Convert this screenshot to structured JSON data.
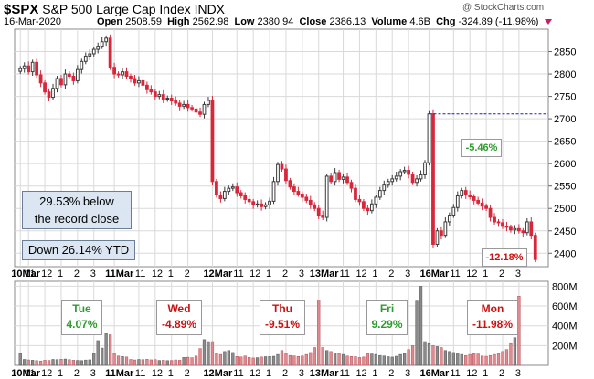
{
  "header": {
    "symbol": "$SPX",
    "name": "S&P 500 Large Cap Index",
    "exchange": "INDX",
    "date": "16-Mar-2020",
    "open_label": "Open",
    "open": "2508.59",
    "high_label": "High",
    "high": "2562.98",
    "low_label": "Low",
    "low": "2380.94",
    "close_label": "Close",
    "close": "2386.13",
    "volume_label": "Volume",
    "volume": "4.6B",
    "chg_label": "Chg",
    "chg": "-324.89 (-11.98%)",
    "copyright": "@ StockCharts.com"
  },
  "annotations": {
    "below_record_line1": "29.53% below",
    "below_record_line2": "the record close",
    "ytd": "Down 26.14% YTD",
    "pct_thu": "-5.46%",
    "pct_mon": "-12.18%"
  },
  "days": [
    {
      "name": "Tue",
      "pct": "4.07%",
      "dir": "up"
    },
    {
      "name": "Wed",
      "pct": "-4.89%",
      "dir": "down"
    },
    {
      "name": "Thu",
      "pct": "-9.51%",
      "dir": "down"
    },
    {
      "name": "Fri",
      "pct": "9.29%",
      "dir": "up"
    },
    {
      "name": "Mon",
      "pct": "-11.98%",
      "dir": "down"
    }
  ],
  "colors": {
    "up": "#3a3a3a",
    "down": "#d8263b",
    "up_volume": "#8a8a8a",
    "down_volume": "#e08a8f",
    "grid": "#d9d9d9",
    "reference_line": "#1a1acc"
  },
  "chart_data": {
    "type": "candlestick",
    "title": "$SPX S&P 500 Large Cap Index",
    "interval": "15-minute",
    "price_axis": {
      "ticks": [
        2400,
        2450,
        2500,
        2550,
        2600,
        2650,
        2700,
        2750,
        2800,
        2850
      ],
      "range": [
        2370,
        2900
      ],
      "grid": true
    },
    "volume_axis": {
      "ticks": [
        "200M",
        "400M",
        "600M",
        "800M"
      ],
      "range_millions": [
        0,
        850
      ]
    },
    "reference_line": 2711,
    "x_tick_labels": [
      "10Mar",
      "11",
      "12",
      "1",
      "2",
      "3",
      "11Mar",
      "11",
      "12",
      "1",
      "2",
      "12Mar",
      "11",
      "12",
      "1",
      "2",
      "3",
      "13Mar",
      "11",
      "12",
      "1",
      "2",
      "3",
      "16Mar",
      "11",
      "12",
      "1",
      "2",
      "3"
    ],
    "x_tick_positions_in_bars": [
      0,
      2,
      6,
      10,
      14,
      18,
      23,
      29,
      33,
      37,
      41,
      47,
      53,
      57,
      61,
      65,
      69,
      73,
      79,
      83,
      87,
      91,
      95,
      100,
      106,
      110,
      114,
      118,
      122
    ],
    "price_panel_labels": [
      "10Mar",
      "11",
      "12",
      "1",
      "2",
      "3",
      "11Mar",
      "11",
      "12",
      "1",
      "2",
      "12Mar",
      "11",
      "12",
      "1",
      "2",
      "3",
      "13Mar",
      "11",
      "12",
      "1",
      "2",
      "3",
      "16Mar",
      "11",
      "12",
      "1",
      "2",
      "3"
    ],
    "closes": [
      2812,
      2818,
      2805,
      2826,
      2798,
      2780,
      2760,
      2748,
      2768,
      2790,
      2776,
      2800,
      2795,
      2785,
      2810,
      2828,
      2840,
      2845,
      2855,
      2862,
      2872,
      2880,
      2815,
      2800,
      2798,
      2805,
      2795,
      2790,
      2780,
      2785,
      2775,
      2765,
      2760,
      2750,
      2754,
      2744,
      2746,
      2740,
      2735,
      2728,
      2732,
      2725,
      2722,
      2715,
      2710,
      2732,
      2741,
      2560,
      2530,
      2522,
      2538,
      2545,
      2548,
      2535,
      2528,
      2520,
      2515,
      2508,
      2510,
      2504,
      2508,
      2516,
      2560,
      2598,
      2588,
      2562,
      2548,
      2538,
      2532,
      2525,
      2518,
      2508,
      2500,
      2485,
      2480,
      2572,
      2560,
      2580,
      2565,
      2570,
      2558,
      2545,
      2520,
      2515,
      2500,
      2495,
      2510,
      2525,
      2540,
      2552,
      2560,
      2566,
      2572,
      2582,
      2585,
      2576,
      2558,
      2566,
      2575,
      2602,
      2711,
      2420,
      2450,
      2440,
      2470,
      2485,
      2502,
      2528,
      2540,
      2530,
      2526,
      2518,
      2512,
      2505,
      2500,
      2480,
      2470,
      2468,
      2460,
      2458,
      2452,
      2455,
      2450,
      2446,
      2470,
      2440,
      2386
    ],
    "volumes_millions": [
      120,
      60,
      55,
      52,
      48,
      44,
      52,
      50,
      60,
      58,
      62,
      64,
      58,
      52,
      50,
      48,
      54,
      56,
      120,
      250,
      175,
      320,
      310,
      120,
      95,
      90,
      85,
      60,
      55,
      60,
      58,
      62,
      56,
      58,
      50,
      52,
      48,
      50,
      55,
      52,
      80,
      82,
      78,
      94,
      170,
      260,
      240,
      240,
      120,
      110,
      140,
      150,
      130,
      90,
      85,
      95,
      80,
      75,
      78,
      85,
      88,
      90,
      92,
      110,
      150,
      120,
      100,
      96,
      90,
      95,
      110,
      130,
      180,
      660,
      180,
      150,
      140,
      125,
      120,
      110,
      95,
      90,
      88,
      80,
      85,
      120,
      115,
      110,
      100,
      95,
      88,
      84,
      92,
      110,
      120,
      160,
      200,
      650,
      800,
      240,
      220,
      200,
      190,
      180,
      150,
      140,
      130,
      125,
      110,
      100,
      110,
      120,
      115,
      95,
      92,
      100,
      110,
      120,
      140,
      160,
      220,
      280,
      700
    ]
  }
}
